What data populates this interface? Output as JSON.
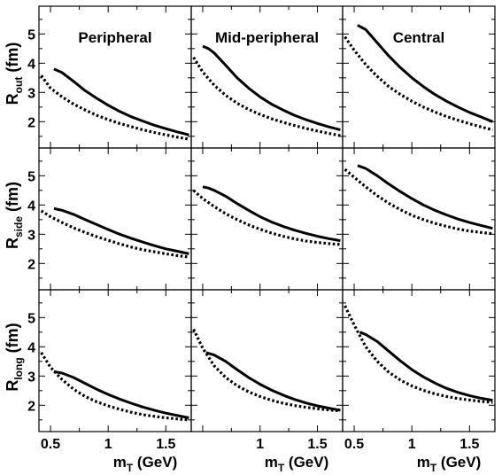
{
  "chart_data": {
    "type": "line",
    "layout": "3x3 panel grid, shared axes",
    "columns": [
      "Peripheral",
      "Mid-peripheral",
      "Central"
    ],
    "rows": [
      {
        "key": "out",
        "ylabel_main": "R",
        "ylabel_sub": "out",
        "ylabel_unit": "(fm)"
      },
      {
        "key": "side",
        "ylabel_main": "R",
        "ylabel_sub": "side",
        "ylabel_unit": "(fm)"
      },
      {
        "key": "long",
        "ylabel_main": "R",
        "ylabel_sub": "long",
        "ylabel_unit": "(fm)"
      }
    ],
    "xlabel_main": "m",
    "xlabel_sub": "T",
    "xlabel_unit": "(GeV)",
    "xlim": [
      0.4,
      1.72
    ],
    "ylim": [
      1.1,
      5.95
    ],
    "xticks": [
      0.5,
      1,
      1.5
    ],
    "xtick_labels": [
      "0.5",
      "1",
      "1.5"
    ],
    "xtick_labels_shown_per_column": [
      [
        "0.5",
        "1",
        "1.5"
      ],
      [
        "1",
        "1.5"
      ],
      [
        "0.5",
        "1",
        "1.5"
      ]
    ],
    "yticks": [
      2,
      3,
      4,
      5
    ],
    "ytick_labels": [
      "2",
      "3",
      "4",
      "5"
    ],
    "minor_xticks": [
      0.75,
      1.25
    ],
    "minor_yticks": [
      1.5,
      2.5,
      3.5,
      4.5,
      5.5
    ],
    "grid": false,
    "legend": "none",
    "line_styles": {
      "solid": "solid black",
      "dotted": "dotted black"
    },
    "panels": [
      {
        "row": "out",
        "col": "Peripheral",
        "solid": {
          "x": [
            0.53,
            0.6,
            0.7,
            0.8,
            0.9,
            1.0,
            1.1,
            1.2,
            1.3,
            1.4,
            1.5,
            1.6,
            1.7
          ],
          "y": [
            3.8,
            3.68,
            3.38,
            3.06,
            2.8,
            2.56,
            2.35,
            2.17,
            2.02,
            1.88,
            1.76,
            1.65,
            1.55
          ]
        },
        "dotted": {
          "x": [
            0.42,
            0.5,
            0.6,
            0.7,
            0.8,
            0.9,
            1.0,
            1.1,
            1.2,
            1.3,
            1.4,
            1.5,
            1.6,
            1.7
          ],
          "y": [
            3.58,
            3.15,
            2.85,
            2.6,
            2.4,
            2.22,
            2.07,
            1.94,
            1.83,
            1.72,
            1.63,
            1.55,
            1.47,
            1.4
          ]
        }
      },
      {
        "row": "out",
        "col": "Mid-peripheral",
        "solid": {
          "x": [
            0.5,
            0.55,
            0.6,
            0.7,
            0.8,
            0.9,
            1.0,
            1.1,
            1.2,
            1.3,
            1.4,
            1.5,
            1.6,
            1.7
          ],
          "y": [
            4.58,
            4.5,
            4.35,
            3.93,
            3.5,
            3.15,
            2.85,
            2.6,
            2.4,
            2.22,
            2.07,
            1.94,
            1.82,
            1.72
          ]
        },
        "dotted": {
          "x": [
            0.42,
            0.5,
            0.6,
            0.7,
            0.8,
            0.9,
            1.0,
            1.1,
            1.2,
            1.3,
            1.4,
            1.5,
            1.6,
            1.7
          ],
          "y": [
            4.2,
            3.7,
            3.25,
            2.9,
            2.63,
            2.42,
            2.25,
            2.1,
            1.98,
            1.87,
            1.77,
            1.68,
            1.6,
            1.52
          ]
        }
      },
      {
        "row": "out",
        "col": "Central",
        "solid": {
          "x": [
            0.53,
            0.6,
            0.7,
            0.8,
            0.9,
            1.0,
            1.1,
            1.2,
            1.3,
            1.4,
            1.5,
            1.6,
            1.7
          ],
          "y": [
            5.3,
            5.15,
            4.7,
            4.25,
            3.85,
            3.5,
            3.2,
            2.93,
            2.7,
            2.5,
            2.32,
            2.16,
            2.0
          ]
        },
        "dotted": {
          "x": [
            0.42,
            0.5,
            0.6,
            0.7,
            0.8,
            0.9,
            1.0,
            1.1,
            1.2,
            1.3,
            1.4,
            1.5,
            1.6,
            1.7
          ],
          "y": [
            4.9,
            4.45,
            3.95,
            3.55,
            3.2,
            2.93,
            2.7,
            2.5,
            2.33,
            2.18,
            2.05,
            1.93,
            1.82,
            1.72
          ]
        }
      },
      {
        "row": "side",
        "col": "Peripheral",
        "solid": {
          "x": [
            0.53,
            0.6,
            0.7,
            0.8,
            0.9,
            1.0,
            1.1,
            1.2,
            1.3,
            1.4,
            1.5,
            1.6,
            1.7
          ],
          "y": [
            3.88,
            3.82,
            3.68,
            3.5,
            3.33,
            3.16,
            3.0,
            2.86,
            2.73,
            2.61,
            2.5,
            2.42,
            2.33
          ]
        },
        "dotted": {
          "x": [
            0.42,
            0.5,
            0.6,
            0.7,
            0.8,
            0.9,
            1.0,
            1.1,
            1.2,
            1.3,
            1.4,
            1.5,
            1.6,
            1.7
          ],
          "y": [
            3.8,
            3.6,
            3.4,
            3.22,
            3.06,
            2.92,
            2.79,
            2.67,
            2.56,
            2.47,
            2.4,
            2.33,
            2.27,
            2.22
          ]
        }
      },
      {
        "row": "side",
        "col": "Mid-peripheral",
        "solid": {
          "x": [
            0.5,
            0.55,
            0.6,
            0.7,
            0.8,
            0.9,
            1.0,
            1.1,
            1.2,
            1.3,
            1.4,
            1.5,
            1.6,
            1.7
          ],
          "y": [
            4.62,
            4.58,
            4.5,
            4.3,
            4.05,
            3.82,
            3.6,
            3.42,
            3.27,
            3.14,
            3.03,
            2.93,
            2.85,
            2.78
          ]
        },
        "dotted": {
          "x": [
            0.42,
            0.5,
            0.6,
            0.7,
            0.8,
            0.9,
            1.0,
            1.1,
            1.2,
            1.3,
            1.4,
            1.5,
            1.6,
            1.7
          ],
          "y": [
            4.5,
            4.22,
            3.95,
            3.7,
            3.5,
            3.32,
            3.17,
            3.04,
            2.93,
            2.84,
            2.77,
            2.72,
            2.68,
            2.65
          ]
        }
      },
      {
        "row": "side",
        "col": "Central",
        "solid": {
          "x": [
            0.53,
            0.6,
            0.7,
            0.8,
            0.9,
            1.0,
            1.1,
            1.2,
            1.3,
            1.4,
            1.5,
            1.6,
            1.7
          ],
          "y": [
            5.35,
            5.25,
            5.0,
            4.72,
            4.46,
            4.22,
            4.0,
            3.82,
            3.66,
            3.52,
            3.4,
            3.3,
            3.2
          ]
        },
        "dotted": {
          "x": [
            0.42,
            0.5,
            0.6,
            0.7,
            0.8,
            0.9,
            1.0,
            1.1,
            1.2,
            1.3,
            1.4,
            1.5,
            1.6,
            1.7
          ],
          "y": [
            5.22,
            4.95,
            4.62,
            4.32,
            4.06,
            3.84,
            3.65,
            3.5,
            3.37,
            3.27,
            3.18,
            3.11,
            3.06,
            3.02
          ]
        }
      },
      {
        "row": "long",
        "col": "Peripheral",
        "solid": {
          "x": [
            0.53,
            0.6,
            0.7,
            0.8,
            0.9,
            1.0,
            1.1,
            1.2,
            1.3,
            1.4,
            1.5,
            1.6,
            1.7
          ],
          "y": [
            3.15,
            3.1,
            2.95,
            2.75,
            2.55,
            2.37,
            2.21,
            2.07,
            1.94,
            1.83,
            1.73,
            1.65,
            1.57
          ]
        },
        "dotted": {
          "x": [
            0.42,
            0.5,
            0.6,
            0.7,
            0.8,
            0.9,
            1.0,
            1.1,
            1.2,
            1.3,
            1.4,
            1.5,
            1.6,
            1.7
          ],
          "y": [
            3.8,
            3.3,
            2.88,
            2.55,
            2.3,
            2.12,
            1.98,
            1.86,
            1.76,
            1.68,
            1.62,
            1.57,
            1.53,
            1.5
          ]
        }
      },
      {
        "row": "long",
        "col": "Mid-peripheral",
        "solid": {
          "x": [
            0.53,
            0.6,
            0.7,
            0.8,
            0.9,
            1.0,
            1.1,
            1.2,
            1.3,
            1.4,
            1.5,
            1.6,
            1.7
          ],
          "y": [
            3.8,
            3.72,
            3.5,
            3.22,
            2.95,
            2.72,
            2.52,
            2.35,
            2.2,
            2.08,
            1.98,
            1.9,
            1.83
          ]
        },
        "dotted": {
          "x": [
            0.42,
            0.5,
            0.6,
            0.7,
            0.8,
            0.9,
            1.0,
            1.1,
            1.2,
            1.3,
            1.4,
            1.5,
            1.6,
            1.7
          ],
          "y": [
            4.6,
            3.95,
            3.35,
            2.95,
            2.67,
            2.46,
            2.3,
            2.17,
            2.07,
            1.99,
            1.93,
            1.88,
            1.84,
            1.81
          ]
        }
      },
      {
        "row": "long",
        "col": "Central",
        "solid": {
          "x": [
            0.55,
            0.6,
            0.7,
            0.8,
            0.9,
            1.0,
            1.1,
            1.2,
            1.3,
            1.4,
            1.5,
            1.6,
            1.7
          ],
          "y": [
            4.5,
            4.42,
            4.18,
            3.85,
            3.52,
            3.22,
            2.97,
            2.76,
            2.58,
            2.44,
            2.33,
            2.24,
            2.17
          ]
        },
        "dotted": {
          "x": [
            0.42,
            0.5,
            0.6,
            0.7,
            0.8,
            0.9,
            1.0,
            1.1,
            1.2,
            1.3,
            1.4,
            1.5,
            1.6,
            1.7
          ],
          "y": [
            5.4,
            4.75,
            4.0,
            3.5,
            3.13,
            2.86,
            2.66,
            2.51,
            2.39,
            2.3,
            2.23,
            2.18,
            2.13,
            2.1
          ]
        }
      }
    ]
  }
}
